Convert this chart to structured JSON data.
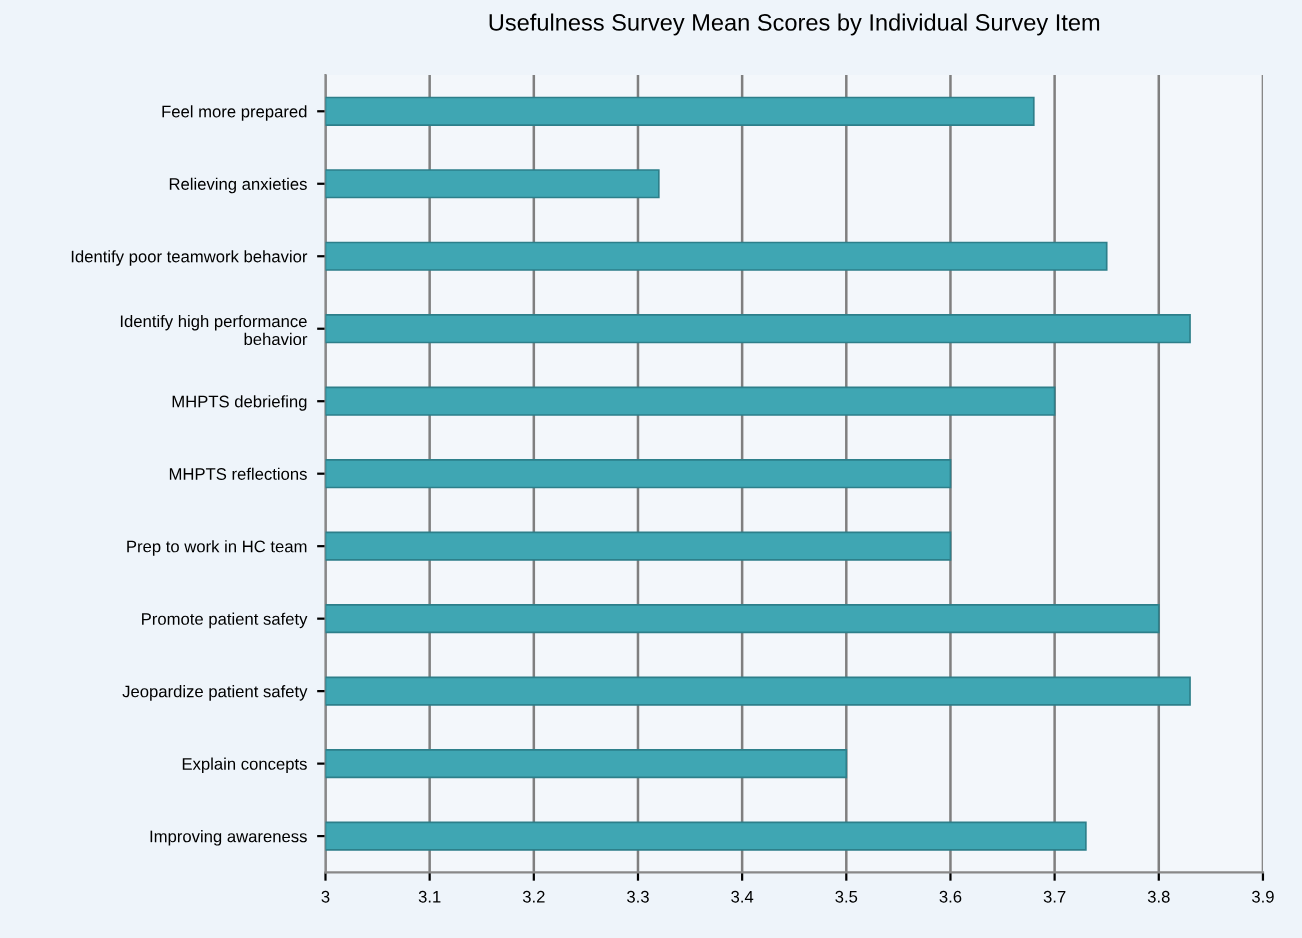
{
  "chart_data": {
    "type": "bar",
    "orientation": "horizontal",
    "title": "Usefulness Survey Mean Scores by Individual Survey Item",
    "categories": [
      "Feel more prepared",
      "Relieving anxieties",
      "Identify poor teamwork behavior",
      "Identify high performance\nbehavior",
      "MHPTS debriefing",
      "MHPTS reflections",
      "Prep to work in HC team",
      "Promote patient safety",
      "Jeopardize patient safety",
      "Explain concepts",
      "Improving awareness"
    ],
    "values": [
      3.68,
      3.32,
      3.75,
      3.83,
      3.7,
      3.6,
      3.6,
      3.8,
      3.83,
      3.5,
      3.73
    ],
    "color": "#3fa6b3",
    "xlim": [
      3,
      3.9
    ],
    "xticks": [
      3,
      3.1,
      3.2,
      3.3,
      3.4,
      3.5,
      3.6,
      3.7,
      3.8,
      3.9
    ],
    "grid": "x",
    "legend": false
  }
}
